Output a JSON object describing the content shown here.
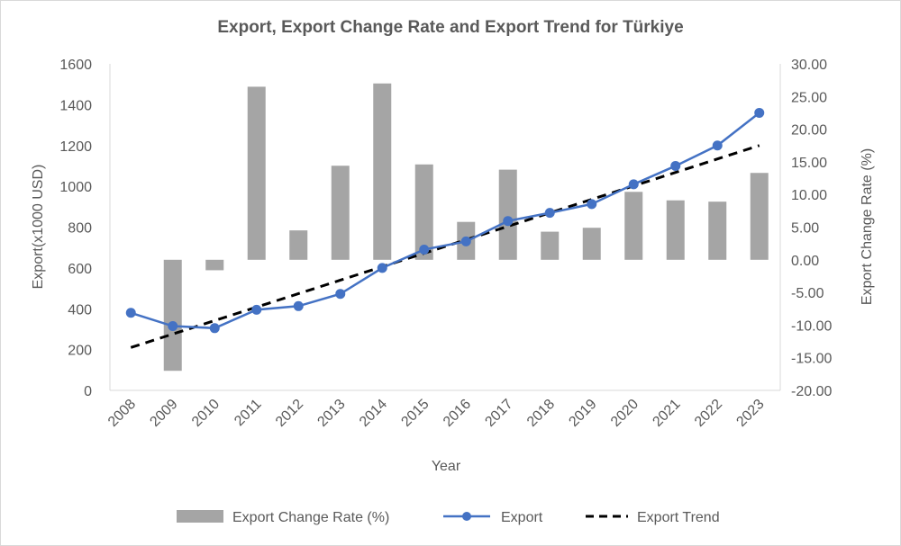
{
  "chart_data": {
    "type": "bar+line",
    "title": "Export, Export Change Rate and Export Trend for Türkiye",
    "xlabel": "Year",
    "ylabel_left": "Export(x1000 USD)",
    "ylabel_right": "Export Change Rate (%)",
    "categories": [
      "2008",
      "2009",
      "2010",
      "2011",
      "2012",
      "2013",
      "2014",
      "2015",
      "2016",
      "2017",
      "2018",
      "2019",
      "2020",
      "2021",
      "2022",
      "2023"
    ],
    "ylim_left": [
      0,
      1600
    ],
    "yticks_left": [
      "0",
      "200",
      "400",
      "600",
      "800",
      "1000",
      "1200",
      "1400",
      "1600"
    ],
    "ylim_right": [
      -20,
      30
    ],
    "yticks_right": [
      "-20.00",
      "-15.00",
      "-10.00",
      "-5.00",
      "0.00",
      "5.00",
      "10.00",
      "15.00",
      "20.00",
      "25.00",
      "30.00"
    ],
    "series": [
      {
        "name": "Export Change Rate (%)",
        "type": "bar",
        "axis": "right",
        "color": "#a5a5a5",
        "values": [
          null,
          -17.0,
          -1.6,
          26.5,
          4.5,
          14.4,
          27.0,
          14.6,
          5.8,
          13.8,
          4.3,
          4.9,
          10.4,
          9.1,
          8.9,
          13.3
        ]
      },
      {
        "name": "Export",
        "type": "line",
        "axis": "left",
        "color": "#4472c4",
        "values": [
          380,
          315,
          305,
          395,
          413,
          473,
          600,
          690,
          730,
          830,
          870,
          913,
          1010,
          1100,
          1200,
          1360
        ]
      },
      {
        "name": "Export Trend",
        "type": "line",
        "axis": "left",
        "style": "dashed",
        "color": "#000000",
        "values": [
          210,
          276,
          342,
          408,
          474,
          540,
          606,
          672,
          738,
          804,
          870,
          936,
          1002,
          1068,
          1134,
          1200
        ]
      }
    ],
    "legend_position": "bottom",
    "grid": false
  }
}
